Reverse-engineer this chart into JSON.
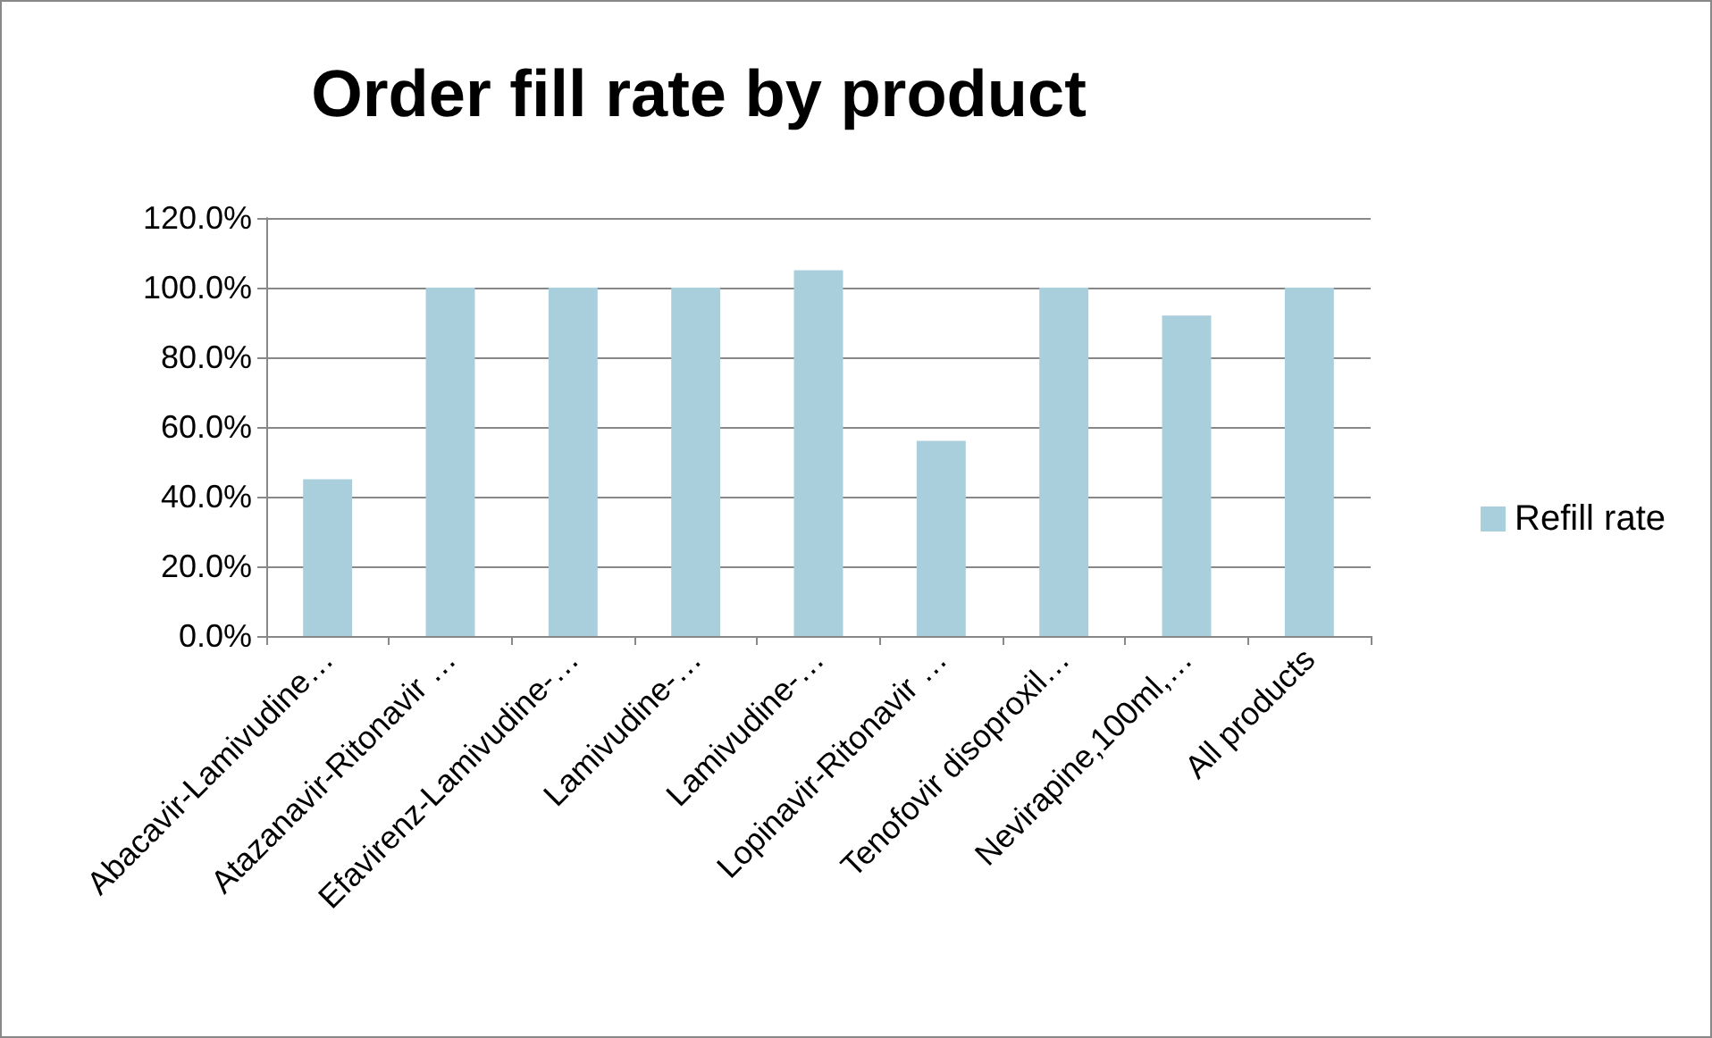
{
  "chart_data": {
    "type": "bar",
    "title": "Order fill rate by product",
    "categories": [
      "Abacavir-Lamivudine…",
      "Atazanavir-Ritonavir …",
      "Efavirenz-Lamivudine-…",
      "Lamivudine-…",
      "Lamivudine-…",
      "Lopinavir-Ritonavir …",
      "Tenofovir disoproxil…",
      "Nevirapine,100ml,…",
      "All products"
    ],
    "series": [
      {
        "name": "Refill rate",
        "color": "#a9cfdc",
        "values": [
          45,
          100,
          100,
          100,
          105,
          56,
          100,
          92,
          100
        ]
      }
    ],
    "ylim": [
      0,
      120
    ],
    "yticks": [
      {
        "value": 0,
        "label": "0.0%"
      },
      {
        "value": 20,
        "label": "20.0%"
      },
      {
        "value": 40,
        "label": "40.0%"
      },
      {
        "value": 60,
        "label": "60.0%"
      },
      {
        "value": 80,
        "label": "80.0%"
      },
      {
        "value": 100,
        "label": "100.0%"
      },
      {
        "value": 120,
        "label": "120.0%"
      }
    ],
    "grid": "y",
    "legend": "right"
  }
}
